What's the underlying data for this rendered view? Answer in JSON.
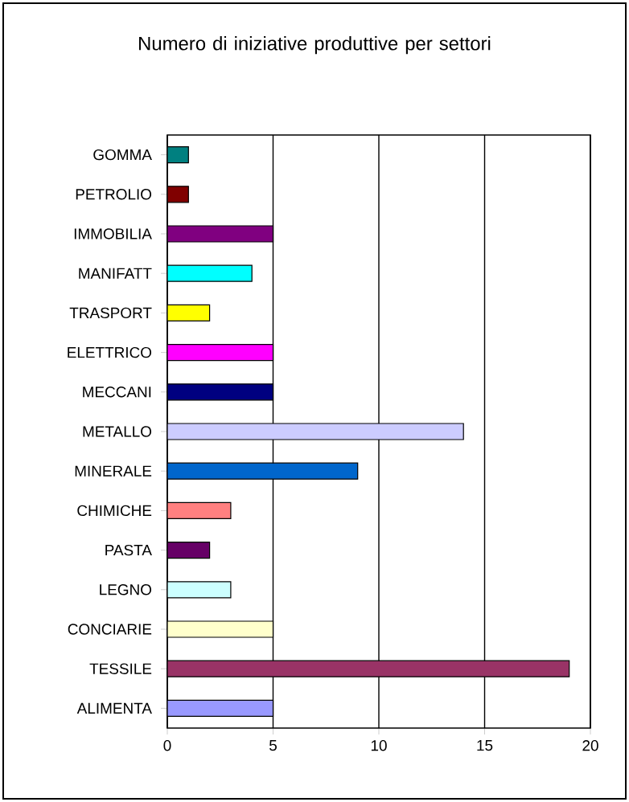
{
  "chart_data": {
    "type": "bar",
    "orientation": "horizontal",
    "title": "Numero di iniziative produttive per settori",
    "categories": [
      "GOMMA",
      "PETROLIO",
      "IMMOBILIA",
      "MANIFATT",
      "TRASPORT",
      "ELETTRICO",
      "MECCANI",
      "METALLO",
      "MINERALE",
      "CHIMICHE",
      "PASTA",
      "LEGNO",
      "CONCIARIE",
      "TESSILE",
      "ALIMENTA"
    ],
    "values": [
      1,
      1,
      5,
      4,
      2,
      5,
      5,
      14,
      9,
      3,
      2,
      3,
      5,
      19,
      5
    ],
    "colors": [
      "#008080",
      "#800000",
      "#800080",
      "#00ffff",
      "#ffff00",
      "#ff00ff",
      "#000080",
      "#ccccff",
      "#0066cc",
      "#ff8080",
      "#660066",
      "#ccffff",
      "#ffffcc",
      "#993366",
      "#9999ff"
    ],
    "xlim": [
      0,
      20
    ],
    "xticks": [
      0,
      5,
      10,
      15,
      20
    ],
    "grid": "x"
  }
}
